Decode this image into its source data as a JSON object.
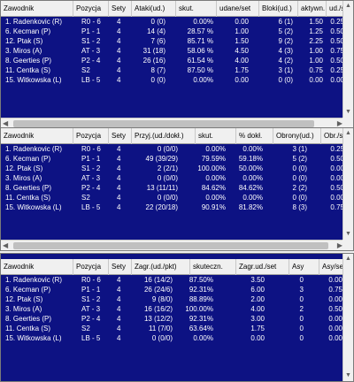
{
  "table1": {
    "headers": [
      "Zawodnik",
      "Pozycja",
      "Sety",
      "Ataki(ud.)",
      "skut.",
      "udane/set",
      "Bloki(ud.)",
      "aktywn.",
      "ud./set"
    ],
    "rows": [
      [
        "1. Radenkovic (R)",
        "R0 - 6",
        "4",
        "0 (0)",
        "0.00%",
        "0.00",
        "6 (1)",
        "1.50",
        "0.25"
      ],
      [
        "6. Kecman (P)",
        "P1 - 1",
        "4",
        "14 (4)",
        "28.57 %",
        "1.00",
        "5 (2)",
        "1.25",
        "0.50"
      ],
      [
        "12. Ptak (S)",
        "S1 - 2",
        "4",
        "7 (6)",
        "85.71 %",
        "1.50",
        "9 (2)",
        "2.25",
        "0.50"
      ],
      [
        "3. Miros (A)",
        "AT - 3",
        "4",
        "31 (18)",
        "58.06 %",
        "4.50",
        "4 (3)",
        "1.00",
        "0.75"
      ],
      [
        "8. Geerties (P)",
        "P2 - 4",
        "4",
        "26 (16)",
        "61.54 %",
        "4.00",
        "4 (2)",
        "1.00",
        "0.50"
      ],
      [
        "11. Centka (S)",
        "S2",
        "4",
        "8 (7)",
        "87.50 %",
        "1.75",
        "3 (1)",
        "0.75",
        "0.25"
      ],
      [
        "15. Witkowska (L)",
        "LB - 5",
        "4",
        "0 (0)",
        "0.00%",
        "0.00",
        "0 (0)",
        "0.00",
        "0.00"
      ]
    ]
  },
  "table2": {
    "headers": [
      "Zawodnik",
      "Pozycja",
      "Sety",
      "Przyj.(ud./dokł.)",
      "skut.",
      "% dokł.",
      "Obrony(ud.)",
      "Obr./set"
    ],
    "rows": [
      [
        "1. Radenkovic (R)",
        "R0 - 6",
        "4",
        "0 (0/0)",
        "0.00%",
        "0.00%",
        "3 (1)",
        "0.25"
      ],
      [
        "6. Kecman (P)",
        "P1 - 1",
        "4",
        "49 (39/29)",
        "79.59%",
        "59.18%",
        "5 (2)",
        "0.50"
      ],
      [
        "12. Ptak (S)",
        "S1 - 2",
        "4",
        "2 (2/1)",
        "100.00%",
        "50.00%",
        "0 (0)",
        "0.00"
      ],
      [
        "3. Miros (A)",
        "AT - 3",
        "4",
        "0 (0/0)",
        "0.00%",
        "0.00%",
        "0 (0)",
        "0.00"
      ],
      [
        "8. Geerties (P)",
        "P2 - 4",
        "4",
        "13 (11/11)",
        "84.62%",
        "84.62%",
        "2 (2)",
        "0.50"
      ],
      [
        "11. Centka (S)",
        "S2",
        "4",
        "0 (0/0)",
        "0.00%",
        "0.00%",
        "0 (0)",
        "0.00"
      ],
      [
        "15. Witkowska (L)",
        "LB - 5",
        "4",
        "22 (20/18)",
        "90.91%",
        "81.82%",
        "8 (3)",
        "0.75"
      ]
    ]
  },
  "table3": {
    "headers": [
      "Zawodnik",
      "Pozycja",
      "Sety",
      "Zagr.(ud./pkt)",
      "skuteczn.",
      "Zagr.ud./set",
      "Asy",
      "Asy/set"
    ],
    "rows": [
      [
        "1. Radenkovic (R)",
        "R0 - 6",
        "4",
        "16 (14/2)",
        "87.50%",
        "3.50",
        "0",
        "0.00"
      ],
      [
        "6. Kecman (P)",
        "P1 - 1",
        "4",
        "26 (24/6)",
        "92.31%",
        "6.00",
        "3",
        "0.75"
      ],
      [
        "12. Ptak (S)",
        "S1 - 2",
        "4",
        "9 (8/0)",
        "88.89%",
        "2.00",
        "0",
        "0.00"
      ],
      [
        "3. Miros (A)",
        "AT - 3",
        "4",
        "16 (16/2)",
        "100.00%",
        "4.00",
        "2",
        "0.50"
      ],
      [
        "8. Geerties (P)",
        "P2 - 4",
        "4",
        "13 (12/2)",
        "92.31%",
        "3.00",
        "0",
        "0.00"
      ],
      [
        "11. Centka (S)",
        "S2",
        "4",
        "11 (7/0)",
        "63.64%",
        "1.75",
        "0",
        "0.00"
      ],
      [
        "15. Witkowska (L)",
        "LB - 5",
        "4",
        "0 (0/0)",
        "0.00%",
        "0.00",
        "0",
        "0.00"
      ]
    ]
  },
  "colors": {
    "grid_bg": "#0d1283",
    "header_bg": "#f0f0f0",
    "row_text": "#ffffff"
  },
  "icons": {
    "scroll_up": "▲",
    "scroll_down": "▼",
    "scroll_left": "◀",
    "scroll_right": "▶"
  }
}
